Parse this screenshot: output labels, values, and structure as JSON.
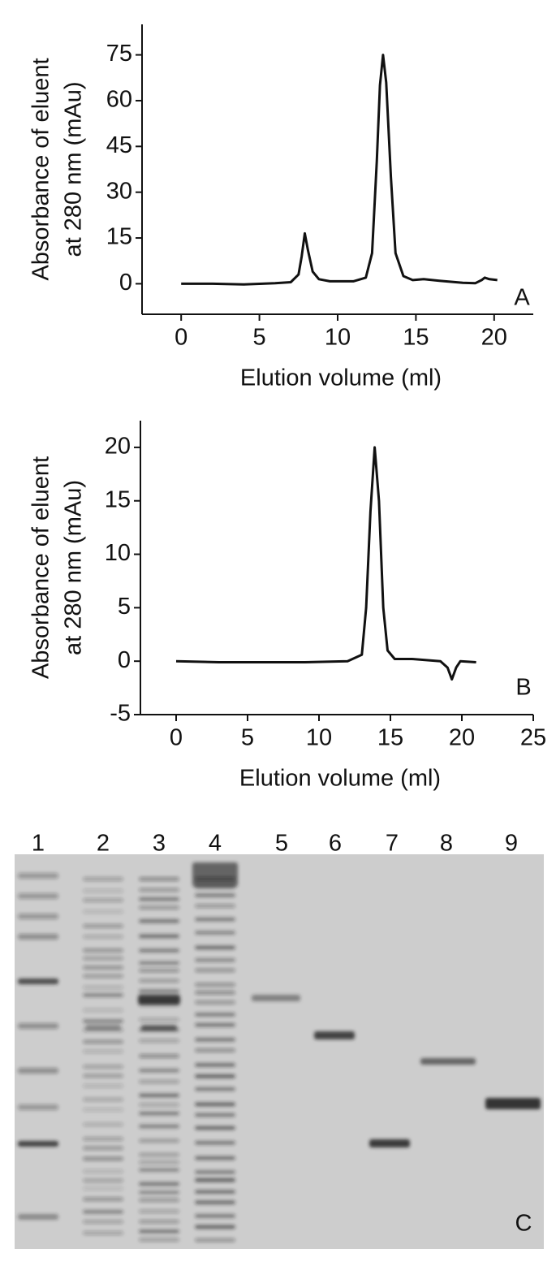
{
  "chart_data": [
    {
      "type": "line",
      "annotation": "A",
      "x_label": "Elution volume (ml)",
      "y_label": [
        "Absorbance of eluent",
        "at 280 nm (mAu)"
      ],
      "xlim": [
        -2.5,
        22.5
      ],
      "xticks": [
        0,
        5,
        10,
        15,
        20
      ],
      "ylim": [
        -10,
        85
      ],
      "yticks": [
        0,
        15,
        30,
        45,
        60,
        75
      ],
      "color": "#111111",
      "x": [
        0,
        2,
        4,
        6,
        7,
        7.5,
        7.7,
        7.9,
        8.1,
        8.4,
        8.8,
        9.5,
        11,
        11.8,
        12.2,
        12.5,
        12.7,
        12.9,
        13.1,
        13.4,
        13.7,
        14.2,
        14.8,
        15.5,
        16.5,
        18,
        18.8,
        19.2,
        19.4,
        19.7,
        20.2
      ],
      "values": [
        0,
        0,
        -0.2,
        0.2,
        0.5,
        3,
        9,
        16.5,
        11,
        4,
        1.5,
        0.8,
        0.8,
        2,
        10,
        40,
        65,
        75,
        66,
        35,
        10,
        2.5,
        1.2,
        1.5,
        1,
        0.3,
        0.2,
        1.2,
        2,
        1.5,
        1.2
      ]
    },
    {
      "type": "line",
      "annotation": "B",
      "x_label": "Elution volume (ml)",
      "y_label": [
        "Absorbance of eluent",
        "at 280 nm (mAu)"
      ],
      "xlim": [
        -2.5,
        25
      ],
      "xticks": [
        0,
        5,
        10,
        15,
        20,
        25
      ],
      "ylim": [
        -5,
        22.5
      ],
      "yticks": [
        -5,
        0,
        5,
        10,
        15,
        20
      ],
      "color": "#111111",
      "x": [
        0,
        3,
        6,
        9,
        12,
        13,
        13.3,
        13.6,
        13.9,
        14.2,
        14.5,
        14.8,
        15.3,
        16.5,
        18.5,
        19,
        19.3,
        19.6,
        19.9,
        21
      ],
      "values": [
        0,
        -0.1,
        -0.1,
        -0.1,
        0,
        0.6,
        5,
        14,
        20,
        15,
        5,
        1,
        0.2,
        0.2,
        0,
        -0.6,
        -1.7,
        -0.6,
        0,
        -0.1
      ]
    }
  ],
  "gel": {
    "lanes": [
      "1",
      "2",
      "3",
      "4",
      "5",
      "6",
      "7",
      "8",
      "9"
    ],
    "panel": "C"
  }
}
